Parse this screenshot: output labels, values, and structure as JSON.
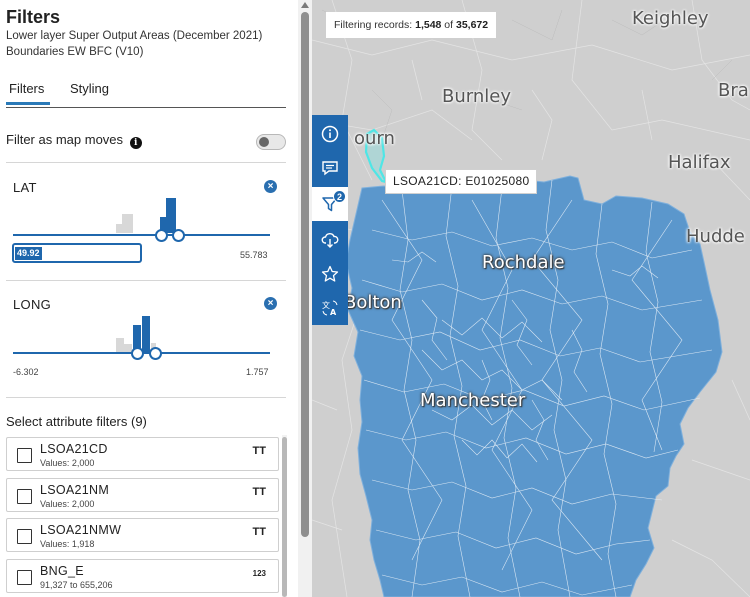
{
  "panel": {
    "title": "Filters",
    "subtitle": "Lower layer Super Output Areas (December 2021) Boundaries EW BFC (V10)",
    "tabs": [
      {
        "label": "Filters",
        "active": true
      },
      {
        "label": "Styling",
        "active": false
      }
    ],
    "filter_as_map_moves": {
      "label": "Filter as map moves",
      "info_glyph": "i",
      "enabled": false
    }
  },
  "range_filters": [
    {
      "label": "LAT",
      "close_glyph": "×",
      "current_min_input": "49.92",
      "min": "",
      "max": "55.783"
    },
    {
      "label": "LONG",
      "close_glyph": "×",
      "min": "-6.302",
      "max": "1.757"
    }
  ],
  "attribute_filters": {
    "heading": "Select attribute filters (9)",
    "items": [
      {
        "name": "LSOA21CD",
        "meta": "Values: 2,000",
        "type_icon": "TT",
        "type": "text"
      },
      {
        "name": "LSOA21NM",
        "meta": "Values: 2,000",
        "type_icon": "TT",
        "type": "text"
      },
      {
        "name": "LSOA21NMW",
        "meta": "Values: 1,918",
        "type_icon": "TT",
        "type": "text"
      },
      {
        "name": "BNG_E",
        "meta": "91,327 to 655,206",
        "type_icon": "123",
        "type": "number"
      }
    ]
  },
  "map": {
    "status": {
      "prefix": "Filtering records: ",
      "count": "1,548",
      "of": " of ",
      "total": "35,672"
    },
    "tooltip": "LSOA21CD: E01025080",
    "places": [
      {
        "name": "Keighley",
        "on_region": false
      },
      {
        "name": "Burnley",
        "on_region": false
      },
      {
        "name": "Bra",
        "on_region": false
      },
      {
        "name": "ourn",
        "on_region": false
      },
      {
        "name": "Halifax",
        "on_region": false
      },
      {
        "name": "Hudde",
        "on_region": false
      },
      {
        "name": "Rochdale",
        "on_region": true
      },
      {
        "name": "Bolton",
        "on_region": true
      },
      {
        "name": "Manchester",
        "on_region": true
      }
    ],
    "toolbar": [
      {
        "icon": "info-icon"
      },
      {
        "icon": "comment-icon"
      },
      {
        "icon": "filter-icon",
        "badge": "2",
        "active": true
      },
      {
        "icon": "download-cloud-icon"
      },
      {
        "icon": "star-icon"
      },
      {
        "icon": "translate-icon"
      }
    ],
    "colors": {
      "region_fill": "#5b97cc",
      "boundary": "#e8f0f8",
      "highlight": "#4fe6e6",
      "accent": "#1f67ad",
      "basemap": "#cfcfcf"
    }
  }
}
